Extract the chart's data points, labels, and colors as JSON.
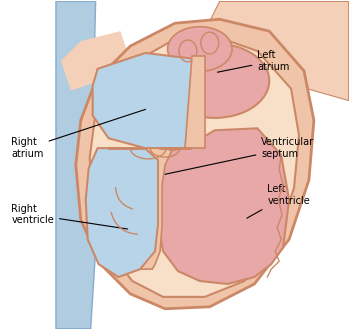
{
  "background_color": "#ffffff",
  "heart_wall_color": "#f0c4a8",
  "heart_wall_edge": "#cc8866",
  "pink_fill": "#e8a8a8",
  "pink_fill_dark": "#d09090",
  "blue_fill": "#b8d4e8",
  "blue_fill_dark": "#90b4d0",
  "blue_vessel_fill": "#b0cce0",
  "blue_vessel_edge": "#88aacc",
  "peach_bg": "#f5d0b8",
  "line_color": "#000000",
  "text_color": "#000000",
  "font_size": 7.0,
  "labels": {
    "left_atrium": "Left\natrium",
    "ventricular_septum": "Ventricular\nseptum",
    "left_ventricle": "Left\nventricle",
    "right_atrium": "Right\natrium",
    "right_ventricle": "Right\nventricle"
  }
}
